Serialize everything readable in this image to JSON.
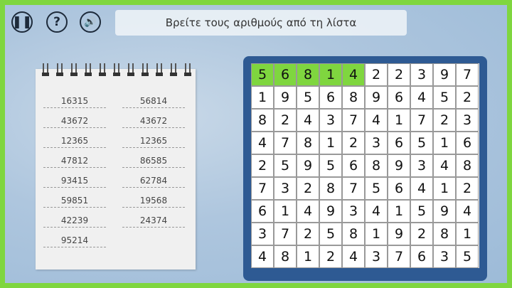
{
  "toolbar": {
    "pause_icon": "pause-icon",
    "help_icon": "question-icon",
    "sound_icon": "speaker-icon"
  },
  "instruction": "Βρείτε τους αριθμούς από τη λίστα",
  "colors": {
    "frame": "#7fd63f",
    "highlight": "#7fd63f",
    "board": "#2e5a93"
  },
  "word_list": {
    "left": [
      "16315",
      "43672",
      "12365",
      "47812",
      "93415",
      "59851",
      "42239",
      "95214"
    ],
    "right": [
      "56814",
      "43672",
      "12365",
      "86585",
      "62784",
      "19568",
      "24374"
    ]
  },
  "grid": [
    [
      "5",
      "6",
      "8",
      "1",
      "4",
      "2",
      "2",
      "3",
      "9",
      "7"
    ],
    [
      "1",
      "9",
      "5",
      "6",
      "8",
      "9",
      "6",
      "4",
      "5",
      "2"
    ],
    [
      "8",
      "2",
      "4",
      "3",
      "7",
      "4",
      "1",
      "7",
      "2",
      "3"
    ],
    [
      "4",
      "7",
      "8",
      "1",
      "2",
      "3",
      "6",
      "5",
      "1",
      "6"
    ],
    [
      "2",
      "5",
      "9",
      "5",
      "6",
      "8",
      "9",
      "3",
      "4",
      "8"
    ],
    [
      "7",
      "3",
      "2",
      "8",
      "7",
      "5",
      "6",
      "4",
      "1",
      "2"
    ],
    [
      "6",
      "1",
      "4",
      "9",
      "3",
      "4",
      "1",
      "5",
      "9",
      "4"
    ],
    [
      "3",
      "7",
      "2",
      "5",
      "8",
      "1",
      "9",
      "2",
      "8",
      "1"
    ],
    [
      "4",
      "8",
      "1",
      "2",
      "4",
      "3",
      "7",
      "6",
      "3",
      "5"
    ]
  ],
  "highlighted": [
    [
      0,
      0
    ],
    [
      0,
      1
    ],
    [
      0,
      2
    ],
    [
      0,
      3
    ],
    [
      0,
      4
    ]
  ]
}
